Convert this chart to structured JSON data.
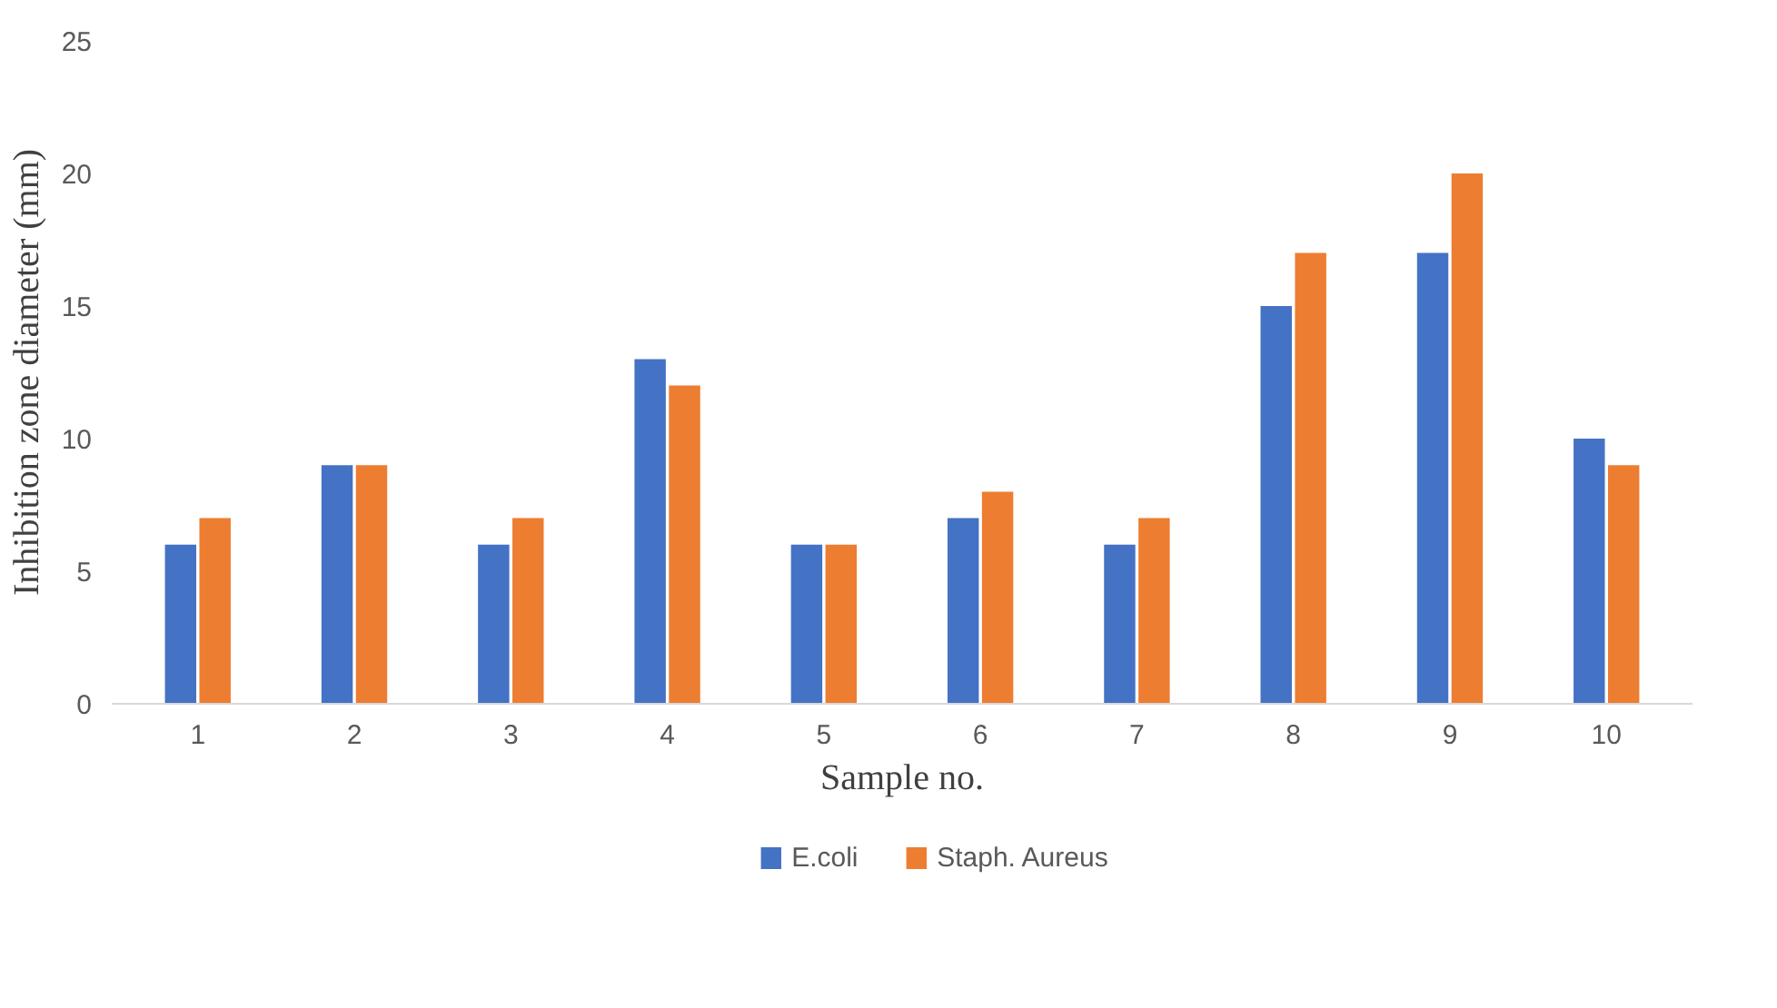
{
  "chart_data": {
    "type": "bar",
    "xlabel": "Sample no.",
    "ylabel": "Inhibition zone diameter (mm)",
    "categories": [
      "1",
      "2",
      "3",
      "4",
      "5",
      "6",
      "7",
      "8",
      "9",
      "10"
    ],
    "series": [
      {
        "name": "E.coli",
        "color": "#4472c4",
        "values": [
          6,
          9,
          6,
          13,
          6,
          7,
          6,
          15,
          17,
          10
        ]
      },
      {
        "name": "Staph. Aureus",
        "color": "#ed7d31",
        "values": [
          7,
          9,
          7,
          12,
          6,
          8,
          7,
          17,
          20,
          9
        ]
      }
    ],
    "ylim": [
      0,
      25
    ],
    "yticks": [
      0,
      5,
      10,
      15,
      20,
      25
    ],
    "grid": false,
    "legend": "bottom"
  }
}
